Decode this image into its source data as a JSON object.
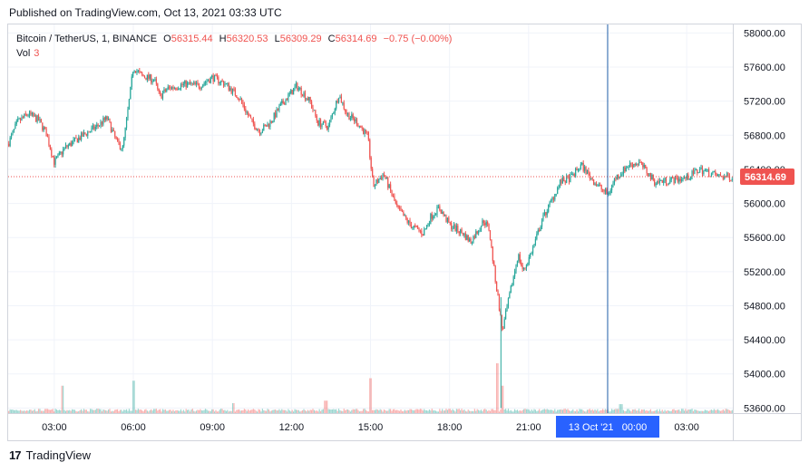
{
  "header": {
    "published": "Published on TradingView.com, Oct 13, 2021 03:33 UTC"
  },
  "legend": {
    "symbol": "Bitcoin / TetherUS, 1, BINANCE",
    "open_key": "O",
    "open": "56315.44",
    "high_key": "H",
    "high": "56320.53",
    "low_key": "L",
    "low": "56309.29",
    "close_key": "C",
    "close": "56314.69",
    "change": "−0.75 (−0.00%)",
    "vol_label": "Vol",
    "vol_value": "3"
  },
  "footer": {
    "logo": "17",
    "brand": "TradingView"
  },
  "colors": {
    "up": "#26a69a",
    "down": "#ef5350",
    "crosshair": "#1f5da8",
    "price_tag": "#ef5350",
    "time_tag": "#2962ff",
    "grid": "#f0f3fa"
  },
  "chart_data": {
    "type": "candlestick",
    "symbol": "Bitcoin / TetherUS, 1, BINANCE",
    "interval": "1",
    "y_ticks": [
      58000,
      57600,
      57200,
      56800,
      56400,
      56000,
      55600,
      55200,
      54800,
      54400,
      54000,
      53600
    ],
    "y_tick_labels": [
      "58000.00",
      "57600.00",
      "57200.00",
      "56800.00",
      "56400.00",
      "56000.00",
      "55600.00",
      "55200.00",
      "54800.00",
      "54400.00",
      "54000.00",
      "53600.00"
    ],
    "ylim": [
      53540,
      58100
    ],
    "x_ticks": [
      "03:00",
      "06:00",
      "09:00",
      "12:00",
      "15:00",
      "18:00",
      "21:00",
      "00:00",
      "03:00"
    ],
    "x_tick_hours": [
      3,
      6,
      9,
      12,
      15,
      18,
      21,
      24,
      27
    ],
    "xlim_hours": [
      1.25,
      28.75
    ],
    "current_price": 56314.69,
    "current_price_label": "56314.69",
    "crosshair_time_label": "13 Oct '21   00:00",
    "crosshair_hour": 24,
    "price_path": [
      [
        1.25,
        56700
      ],
      [
        1.6,
        56950
      ],
      [
        2.0,
        57050
      ],
      [
        2.4,
        56980
      ],
      [
        2.7,
        56820
      ],
      [
        3.0,
        56480
      ],
      [
        3.4,
        56650
      ],
      [
        4.0,
        56780
      ],
      [
        4.6,
        56900
      ],
      [
        5.0,
        57000
      ],
      [
        5.4,
        56700
      ],
      [
        5.6,
        56650
      ],
      [
        5.8,
        57100
      ],
      [
        6.0,
        57600
      ],
      [
        6.3,
        57500
      ],
      [
        6.8,
        57450
      ],
      [
        7.0,
        57250
      ],
      [
        7.3,
        57350
      ],
      [
        8.0,
        57400
      ],
      [
        8.5,
        57380
      ],
      [
        9.0,
        57480
      ],
      [
        9.5,
        57400
      ],
      [
        10.0,
        57250
      ],
      [
        10.5,
        56950
      ],
      [
        10.8,
        56850
      ],
      [
        11.2,
        56950
      ],
      [
        11.6,
        57150
      ],
      [
        12.2,
        57380
      ],
      [
        12.7,
        57200
      ],
      [
        13.0,
        56950
      ],
      [
        13.4,
        56900
      ],
      [
        13.8,
        57280
      ],
      [
        14.1,
        57050
      ],
      [
        14.5,
        56950
      ],
      [
        14.9,
        56780
      ],
      [
        15.1,
        56200
      ],
      [
        15.5,
        56350
      ],
      [
        16.0,
        55950
      ],
      [
        16.5,
        55750
      ],
      [
        17.0,
        55650
      ],
      [
        17.3,
        55850
      ],
      [
        17.6,
        55950
      ],
      [
        18.0,
        55750
      ],
      [
        18.5,
        55650
      ],
      [
        18.8,
        55550
      ],
      [
        19.3,
        55800
      ],
      [
        19.5,
        55700
      ],
      [
        19.7,
        55200
      ],
      [
        19.9,
        54750
      ],
      [
        20.0,
        54500
      ],
      [
        20.3,
        54950
      ],
      [
        20.6,
        55400
      ],
      [
        20.8,
        55200
      ],
      [
        21.2,
        55500
      ],
      [
        21.5,
        55800
      ],
      [
        21.9,
        56050
      ],
      [
        22.2,
        56250
      ],
      [
        22.6,
        56300
      ],
      [
        23.0,
        56450
      ],
      [
        23.5,
        56250
      ],
      [
        24.0,
        56100
      ],
      [
        24.3,
        56300
      ],
      [
        24.8,
        56450
      ],
      [
        25.2,
        56480
      ],
      [
        25.8,
        56250
      ],
      [
        26.3,
        56270
      ],
      [
        27.0,
        56300
      ],
      [
        27.5,
        56400
      ],
      [
        28.2,
        56320
      ],
      [
        28.75,
        56310
      ]
    ],
    "volume_spikes": [
      [
        3.3,
        0.55
      ],
      [
        6.0,
        0.65
      ],
      [
        9.8,
        0.2
      ],
      [
        13.3,
        0.25
      ],
      [
        15.0,
        0.7
      ],
      [
        19.8,
        1.0
      ],
      [
        20.0,
        0.55
      ],
      [
        24.5,
        0.18
      ]
    ]
  }
}
